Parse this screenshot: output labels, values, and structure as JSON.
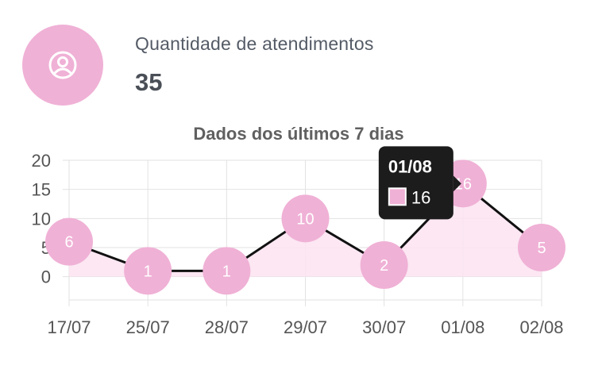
{
  "kpi": {
    "label": "Quantidade de atendimentos",
    "value": "35",
    "icon": "user-circle-icon",
    "accent": "#f0b1d6"
  },
  "chart_data": {
    "type": "line",
    "title": "Dados dos últimos 7 dias",
    "categories": [
      "17/07",
      "25/07",
      "28/07",
      "29/07",
      "30/07",
      "01/08",
      "02/08"
    ],
    "series": [
      {
        "values": [
          6,
          1,
          1,
          10,
          2,
          16,
          5
        ]
      }
    ],
    "yticks": [
      0,
      5,
      10,
      15,
      20
    ],
    "ylim": [
      -4,
      20
    ],
    "grid": true,
    "data_labels": true,
    "line_color": "#111111",
    "point_color": "#f0b1d6",
    "fill_color": "#fbe3f1",
    "tooltip": {
      "title": "01/08",
      "value": "16",
      "category_index": 5
    }
  }
}
